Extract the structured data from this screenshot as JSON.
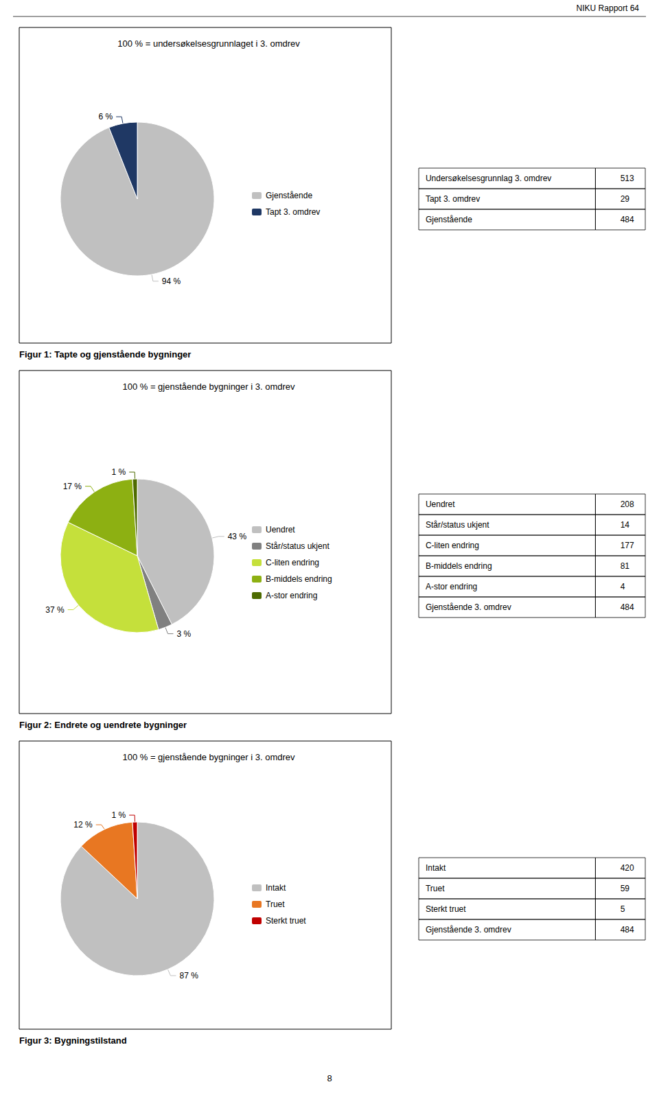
{
  "header": "NIKU Rapport 64",
  "page_number": "8",
  "chart_data": [
    {
      "type": "pie",
      "title": "100 % = undersøkelsesgrunnlaget i 3. omdrev",
      "caption": "Figur 1: Tapte og gjenstående bygninger",
      "categories": [
        "Gjenstående",
        "Tapt 3. omdrev"
      ],
      "values": [
        94,
        6
      ],
      "value_labels": [
        "94 %",
        "6 %"
      ],
      "colors": [
        "#c0c0c0",
        "#1f3864"
      ],
      "data_labels": true,
      "legend": "right",
      "table": [
        {
          "label": "Undersøkelsesgrunnlag 3. omdrev",
          "value": 513
        },
        {
          "label": "Tapt 3. omdrev",
          "value": 29
        },
        {
          "label": "Gjenstående",
          "value": 484
        }
      ]
    },
    {
      "type": "pie",
      "title": "100 % = gjenstående bygninger i 3. omdrev",
      "caption": "Figur 2: Endrete og uendrete bygninger",
      "categories": [
        "Uendret",
        "Står/status ukjent",
        "C-liten endring",
        "B-middels endring",
        "A-stor endring"
      ],
      "values": [
        43,
        3,
        37,
        17,
        1
      ],
      "value_labels": [
        "43 %",
        "3 %",
        "37 %",
        "17 %",
        "1 %"
      ],
      "colors": [
        "#c0c0c0",
        "#808080",
        "#c5e03b",
        "#8db012",
        "#4d6b00"
      ],
      "data_labels": true,
      "legend": "right",
      "table": [
        {
          "label": "Uendret",
          "value": 208
        },
        {
          "label": "Står/status ukjent",
          "value": 14
        },
        {
          "label": "C-liten endring",
          "value": 177
        },
        {
          "label": "B-middels endring",
          "value": 81
        },
        {
          "label": "A-stor endring",
          "value": 4
        },
        {
          "label": "Gjenstående 3. omdrev",
          "value": 484
        }
      ]
    },
    {
      "type": "pie",
      "title": "100 % = gjenstående bygninger i 3. omdrev",
      "caption": "Figur 3: Bygningstilstand",
      "categories": [
        "Intakt",
        "Truet",
        "Sterkt truet"
      ],
      "values": [
        87,
        12,
        1
      ],
      "value_labels": [
        "87 %",
        "12 %",
        "1 %"
      ],
      "colors": [
        "#c0c0c0",
        "#e87722",
        "#c00000"
      ],
      "data_labels": true,
      "legend": "right",
      "table": [
        {
          "label": "Intakt",
          "value": 420
        },
        {
          "label": "Truet",
          "value": 59
        },
        {
          "label": "Sterkt truet",
          "value": 5
        },
        {
          "label": "Gjenstående 3. omdrev",
          "value": 484
        }
      ]
    }
  ]
}
